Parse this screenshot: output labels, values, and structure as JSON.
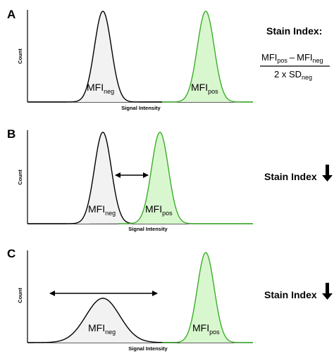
{
  "panels": [
    {
      "letter": "A",
      "y_label": "Count",
      "x_label": "Signal Intensity",
      "neg": {
        "main": "MFI",
        "sub": "neg"
      },
      "pos": {
        "main": "MFI",
        "sub": "pos"
      }
    },
    {
      "letter": "B",
      "y_label": "Count",
      "x_label": "Signal Intensity",
      "neg": {
        "main": "MFI",
        "sub": "neg"
      },
      "pos": {
        "main": "MFI",
        "sub": "pos"
      },
      "side_label": "Stain Index",
      "side_icon": "down-arrow-icon"
    },
    {
      "letter": "C",
      "y_label": "Count",
      "x_label": "Signal Intensity",
      "neg": {
        "main": "MFI",
        "sub": "neg"
      },
      "pos": {
        "main": "MFI",
        "sub": "pos"
      },
      "side_label": "Stain Index",
      "side_icon": "down-arrow-icon"
    }
  ],
  "formula": {
    "title": "Stain Index:",
    "num_mfi1": "MFI",
    "num_sub1": "pos",
    "minus": "–",
    "num_mfi2": "MFI",
    "num_sub2": "neg",
    "den_prefix": "2 x SD",
    "den_sub": "neg"
  },
  "colors": {
    "neg_stroke": "#000000",
    "neg_fill": "#f2f2f2",
    "pos_stroke": "#3bae2a",
    "pos_fill": "#d9f7cf"
  }
}
